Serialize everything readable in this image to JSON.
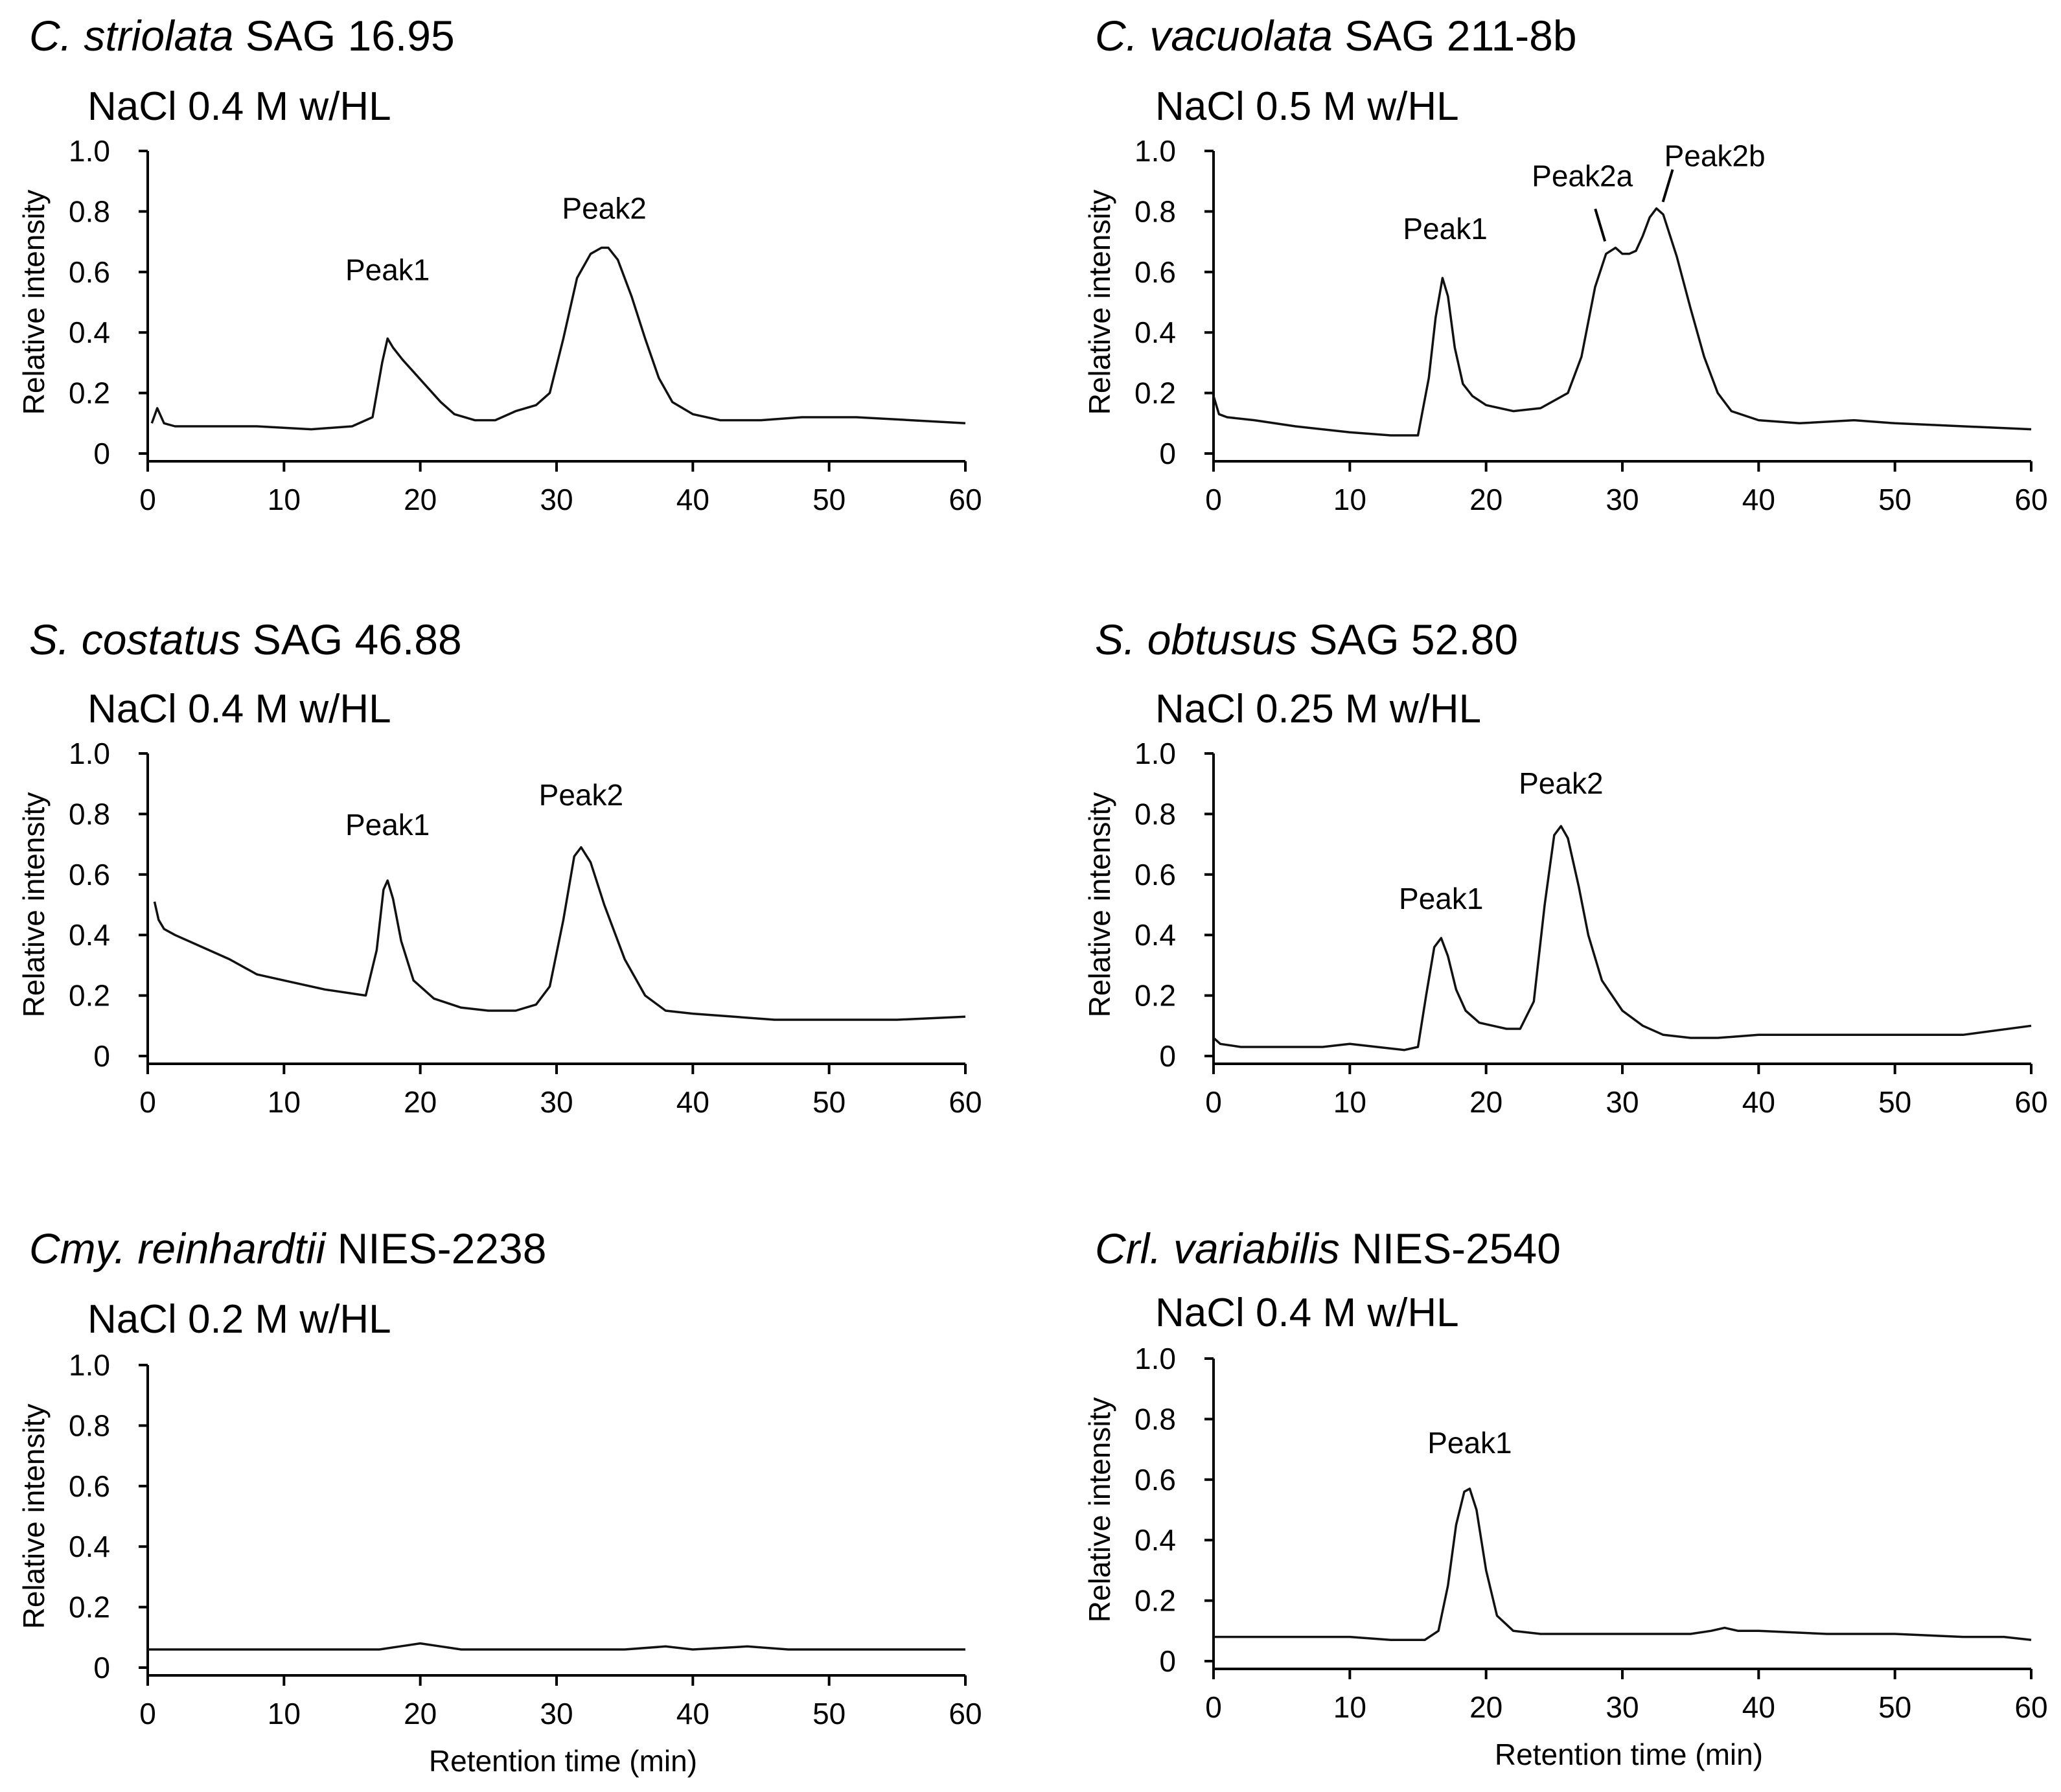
{
  "chart_data": [
    {
      "type": "line",
      "title_italic": "C. striolata",
      "title_rest": " SAG 16.95",
      "subtitle": "NaCl 0.4 M w/HL",
      "ylabel": "Relative intensity",
      "xlabel": "",
      "xlim": [
        0,
        60
      ],
      "ylim": [
        0,
        1.0
      ],
      "xticks": [
        "0",
        "10",
        "20",
        "30",
        "40",
        "50",
        "60"
      ],
      "yticks": [
        "0",
        "0.2",
        "0.4",
        "0.6",
        "0.8",
        "1.0"
      ],
      "grid": false,
      "series": [
        {
          "x": [
            0.3,
            0.7,
            1.2,
            2,
            4,
            8,
            12,
            15,
            16.5,
            17.2,
            17.6,
            18,
            18.7,
            19.5,
            20.5,
            21.5,
            22.5,
            24,
            25.5,
            27,
            28.5,
            29.5,
            30.5,
            31.5,
            32.5,
            33.3,
            33.8,
            34.5,
            35.5,
            36.5,
            37.5,
            38.5,
            40,
            42,
            45,
            48,
            52,
            56,
            60
          ],
          "y": [
            0.1,
            0.15,
            0.1,
            0.09,
            0.09,
            0.09,
            0.08,
            0.09,
            0.12,
            0.3,
            0.38,
            0.35,
            0.31,
            0.27,
            0.22,
            0.17,
            0.13,
            0.11,
            0.11,
            0.14,
            0.16,
            0.2,
            0.38,
            0.58,
            0.66,
            0.68,
            0.68,
            0.64,
            0.52,
            0.38,
            0.25,
            0.17,
            0.13,
            0.11,
            0.11,
            0.12,
            0.12,
            0.11,
            0.1
          ]
        }
      ],
      "annotations": [
        {
          "text": "Peak1",
          "x": 17.6,
          "y": 0.38
        },
        {
          "text": "Peak2",
          "x": 33.5,
          "y": 0.68
        }
      ]
    },
    {
      "type": "line",
      "title_italic": "C. vacuolata",
      "title_rest": " SAG 211-8b",
      "subtitle": "NaCl 0.5 M w/HL",
      "ylabel": "Relative intensity",
      "xlabel": "",
      "xlim": [
        0,
        60
      ],
      "ylim": [
        0,
        1.0
      ],
      "xticks": [
        "0",
        "10",
        "20",
        "30",
        "40",
        "50",
        "60"
      ],
      "yticks": [
        "0",
        "0.2",
        "0.4",
        "0.6",
        "0.8",
        "1.0"
      ],
      "grid": false,
      "series": [
        {
          "x": [
            0,
            0.4,
            1,
            3,
            6,
            10,
            13,
            15,
            15.8,
            16.3,
            16.8,
            17.2,
            17.7,
            18.3,
            19,
            20,
            22,
            24,
            26,
            27,
            28,
            28.8,
            29.5,
            30,
            30.5,
            31,
            31.5,
            32,
            32.5,
            33,
            34,
            35,
            36,
            37,
            38,
            40,
            43,
            47,
            50,
            55,
            60
          ],
          "y": [
            0.19,
            0.13,
            0.12,
            0.11,
            0.09,
            0.07,
            0.06,
            0.06,
            0.25,
            0.45,
            0.58,
            0.52,
            0.35,
            0.23,
            0.19,
            0.16,
            0.14,
            0.15,
            0.2,
            0.32,
            0.55,
            0.66,
            0.68,
            0.66,
            0.66,
            0.67,
            0.72,
            0.78,
            0.81,
            0.79,
            0.65,
            0.48,
            0.32,
            0.2,
            0.14,
            0.11,
            0.1,
            0.11,
            0.1,
            0.09,
            0.08
          ]
        }
      ],
      "annotations": [
        {
          "text": "Peak1",
          "x": 17.0,
          "y": 0.58
        },
        {
          "text": "Peak2a",
          "x": 29.2,
          "y": 0.68
        },
        {
          "text": "Peak2b",
          "x": 32.5,
          "y": 0.81
        }
      ]
    },
    {
      "type": "line",
      "title_italic": "S. costatus",
      "title_rest": " SAG 46.88",
      "subtitle": "NaCl 0.4 M w/HL",
      "ylabel": "Relative intensity",
      "xlabel": "",
      "xlim": [
        0,
        60
      ],
      "ylim": [
        0,
        1.0
      ],
      "xticks": [
        "0",
        "10",
        "20",
        "30",
        "40",
        "50",
        "60"
      ],
      "yticks": [
        "0",
        "0.2",
        "0.4",
        "0.6",
        "0.8",
        "1.0"
      ],
      "grid": false,
      "series": [
        {
          "x": [
            0.5,
            0.8,
            1.2,
            2,
            4,
            6,
            8,
            10,
            13,
            16,
            16.8,
            17.3,
            17.6,
            18,
            18.6,
            19.5,
            21,
            23,
            25,
            27,
            28.5,
            29.5,
            30.5,
            31.3,
            31.8,
            32.5,
            33.5,
            35,
            36.5,
            38,
            40,
            43,
            46,
            50,
            55,
            60
          ],
          "y": [
            0.51,
            0.45,
            0.42,
            0.4,
            0.36,
            0.32,
            0.27,
            0.25,
            0.22,
            0.2,
            0.35,
            0.55,
            0.58,
            0.52,
            0.38,
            0.25,
            0.19,
            0.16,
            0.15,
            0.15,
            0.17,
            0.23,
            0.45,
            0.66,
            0.69,
            0.64,
            0.5,
            0.32,
            0.2,
            0.15,
            0.14,
            0.13,
            0.12,
            0.12,
            0.12,
            0.13
          ]
        }
      ],
      "annotations": [
        {
          "text": "Peak1",
          "x": 17.6,
          "y": 0.58
        },
        {
          "text": "Peak2",
          "x": 31.8,
          "y": 0.69
        }
      ]
    },
    {
      "type": "line",
      "title_italic": "S. obtusus",
      "title_rest": " SAG 52.80",
      "subtitle": "NaCl 0.25 M w/HL",
      "ylabel": "Relative intensity",
      "xlabel": "",
      "xlim": [
        0,
        60
      ],
      "ylim": [
        0,
        1.0
      ],
      "xticks": [
        "0",
        "10",
        "20",
        "30",
        "40",
        "50",
        "60"
      ],
      "yticks": [
        "0",
        "0.2",
        "0.4",
        "0.6",
        "0.8",
        "1.0"
      ],
      "grid": false,
      "series": [
        {
          "x": [
            0,
            0.5,
            2,
            5,
            8,
            10,
            12,
            14,
            15,
            15.6,
            16.2,
            16.7,
            17.2,
            17.8,
            18.5,
            19.5,
            20.5,
            21.5,
            22.5,
            23.5,
            24.3,
            25,
            25.5,
            26,
            26.8,
            27.5,
            28.5,
            30,
            31.5,
            33,
            35,
            37,
            40,
            45,
            50,
            55,
            60
          ],
          "y": [
            0.06,
            0.04,
            0.03,
            0.03,
            0.03,
            0.04,
            0.03,
            0.02,
            0.03,
            0.2,
            0.36,
            0.39,
            0.33,
            0.22,
            0.15,
            0.11,
            0.1,
            0.09,
            0.09,
            0.18,
            0.5,
            0.73,
            0.76,
            0.72,
            0.56,
            0.4,
            0.25,
            0.15,
            0.1,
            0.07,
            0.06,
            0.06,
            0.07,
            0.07,
            0.07,
            0.07,
            0.1
          ]
        }
      ],
      "annotations": [
        {
          "text": "Peak1",
          "x": 16.7,
          "y": 0.39
        },
        {
          "text": "Peak2",
          "x": 25.5,
          "y": 0.76
        }
      ]
    },
    {
      "type": "line",
      "title_italic": "Cmy. reinhardtii",
      "title_rest": " NIES-2238",
      "subtitle": "NaCl 0.2 M w/HL",
      "ylabel": "Relative intensity",
      "xlabel": "Retention time (min)",
      "xlim": [
        0,
        60
      ],
      "ylim": [
        0,
        1.0
      ],
      "xticks": [
        "0",
        "10",
        "20",
        "30",
        "40",
        "50",
        "60"
      ],
      "yticks": [
        "0",
        "0.2",
        "0.4",
        "0.6",
        "0.8",
        "1.0"
      ],
      "grid": false,
      "series": [
        {
          "x": [
            0,
            10,
            17,
            18.5,
            20,
            21.5,
            23,
            25,
            30,
            35,
            38,
            40,
            44,
            47,
            50,
            55,
            60
          ],
          "y": [
            0.06,
            0.06,
            0.06,
            0.07,
            0.08,
            0.07,
            0.06,
            0.06,
            0.06,
            0.06,
            0.07,
            0.06,
            0.07,
            0.06,
            0.06,
            0.06,
            0.06
          ]
        }
      ],
      "annotations": []
    },
    {
      "type": "line",
      "title_italic": "Crl. variabilis",
      "title_rest": " NIES-2540",
      "subtitle": "NaCl 0.4 M w/HL",
      "ylabel": "Relative intensity",
      "xlabel": "Retention time (min)",
      "xlim": [
        0,
        60
      ],
      "ylim": [
        0,
        1.0
      ],
      "xticks": [
        "0",
        "10",
        "20",
        "30",
        "40",
        "50",
        "60"
      ],
      "yticks": [
        "0",
        "0.2",
        "0.4",
        "0.6",
        "0.8",
        "1.0"
      ],
      "grid": false,
      "series": [
        {
          "x": [
            0,
            5,
            10,
            13,
            15.5,
            16.5,
            17.2,
            17.8,
            18.4,
            18.8,
            19.3,
            20,
            20.8,
            22,
            24,
            27,
            30,
            35,
            36.5,
            37.5,
            38.5,
            40,
            45,
            50,
            55,
            58,
            60
          ],
          "y": [
            0.08,
            0.08,
            0.08,
            0.07,
            0.07,
            0.1,
            0.25,
            0.45,
            0.56,
            0.57,
            0.5,
            0.3,
            0.15,
            0.1,
            0.09,
            0.09,
            0.09,
            0.09,
            0.1,
            0.11,
            0.1,
            0.1,
            0.09,
            0.09,
            0.08,
            0.08,
            0.07
          ]
        }
      ],
      "annotations": [
        {
          "text": "Peak1",
          "x": 18.8,
          "y": 0.57
        }
      ]
    }
  ]
}
